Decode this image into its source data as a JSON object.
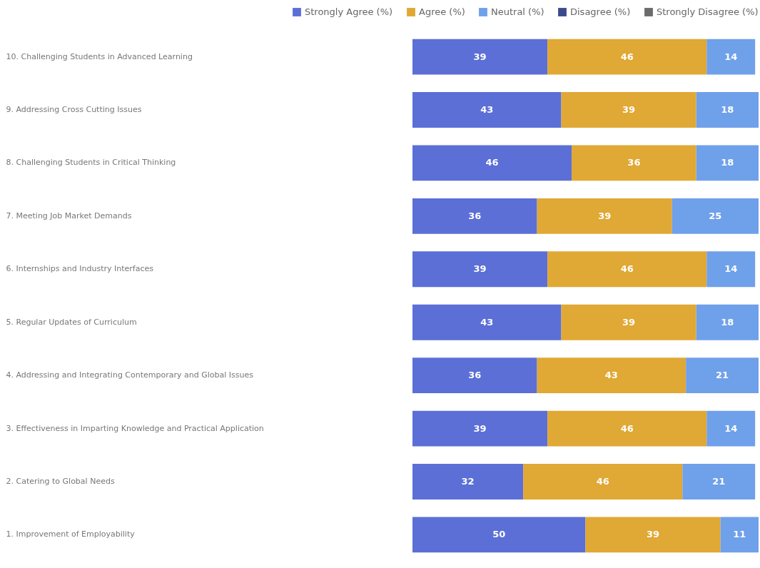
{
  "chart_data": {
    "type": "bar",
    "orientation": "horizontal",
    "stacked": true,
    "legend": "top",
    "grid": false,
    "categories": [
      "10. Challenging Students in Advanced Learning",
      "9. Addressing Cross Cutting Issues",
      "8. Challenging Students in Critical Thinking",
      "7. Meeting Job Market Demands",
      "6. Internships and Industry Interfaces",
      "5. Regular Updates of Curriculum",
      "4. Addressing and Integrating Contemporary and Global Issues",
      "3. Effectiveness in Imparting Knowledge and Practical Application",
      "2. Catering to Global Needs",
      "1. Improvement of Employability"
    ],
    "series": [
      {
        "name": "Strongly Agree (%)",
        "color": "#5b6fd6",
        "values": [
          39,
          43,
          46,
          36,
          39,
          43,
          36,
          39,
          32,
          50
        ],
        "value_labels": [
          "39",
          "43",
          "46",
          "36",
          "39",
          "43",
          "36",
          "39",
          "32",
          "50"
        ]
      },
      {
        "name": "Agree (%)",
        "color": "#e0a834",
        "values": [
          46,
          39,
          36,
          39,
          46,
          39,
          43,
          46,
          46,
          39
        ],
        "value_labels": [
          "46",
          "39",
          "36",
          "39",
          "46",
          "39",
          "43",
          "46",
          "46",
          "39"
        ]
      },
      {
        "name": "Neutral (%)",
        "color": "#6fa0ea",
        "values": [
          14,
          18,
          18,
          25,
          14,
          18,
          21,
          14,
          21,
          11
        ],
        "value_labels": [
          "14",
          "18",
          "18",
          "25",
          "14",
          "18",
          "21",
          "14",
          "21",
          "11"
        ]
      },
      {
        "name": "Disagree (%)",
        "color": "#3c4a8c",
        "values": [
          0,
          0,
          0,
          0,
          0,
          0,
          0,
          0,
          0,
          0
        ],
        "value_labels": [
          null,
          null,
          null,
          null,
          null,
          null,
          null,
          null,
          null,
          null
        ]
      },
      {
        "name": "Strongly Disagree (%)",
        "color": "#6b6b6b",
        "values": [
          0,
          0,
          0,
          0,
          0,
          0,
          0,
          0,
          0,
          0
        ],
        "value_labels": [
          null,
          null,
          null,
          null,
          null,
          null,
          null,
          null,
          null,
          null
        ]
      }
    ]
  }
}
